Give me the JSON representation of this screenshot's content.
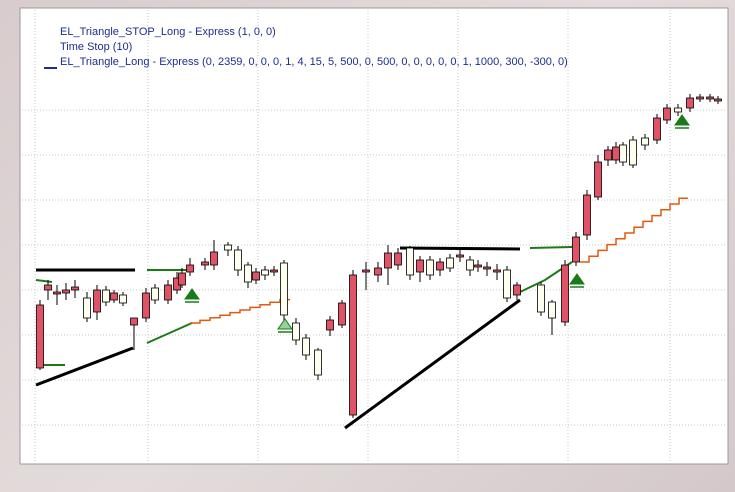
{
  "legend": {
    "lines": [
      "EL_Triangle_STOP_Long - Express  (1, 0, 0)",
      "Time Stop  (10)",
      "EL_Triangle_Long - Express  (0, 2359, 0, 0, 0, 1, 4, 15, 5, 500, 0, 500, 0, 0, 0, 0, 0, 1, 1000, 300, -300, 0)"
    ]
  }
}
